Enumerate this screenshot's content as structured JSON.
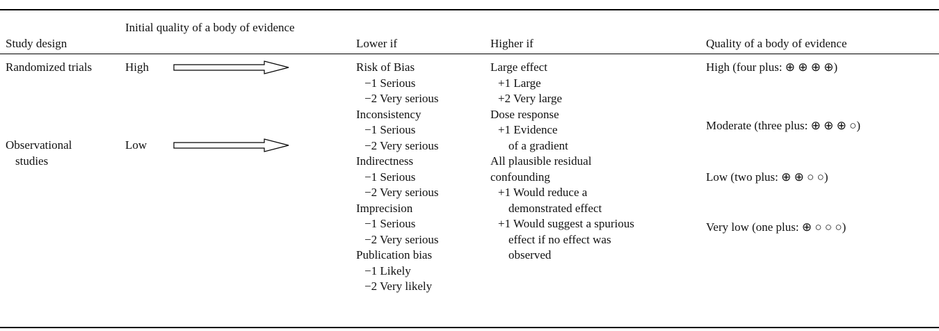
{
  "header": [
    "Study design",
    "Initial quality of a body of evidence",
    "Lower if",
    "Higher if",
    "Quality of a body of evidence"
  ],
  "designs": [
    {
      "design": "Randomized trials",
      "initial": "High"
    },
    {
      "design": "Observational studies",
      "initial": "Low"
    }
  ],
  "lower_if": [
    {
      "factor": "Risk of Bias",
      "levels": [
        "−1 Serious",
        "−2 Very serious"
      ]
    },
    {
      "factor": "Inconsistency",
      "levels": [
        "−1 Serious",
        "−2 Very serious"
      ]
    },
    {
      "factor": "Indirectness",
      "levels": [
        "−1 Serious",
        "−2 Very serious"
      ]
    },
    {
      "factor": "Imprecision",
      "levels": [
        "−1 Serious",
        "−2 Very serious"
      ]
    },
    {
      "factor": "Publication bias",
      "levels": [
        "−1 Likely",
        "−2 Very likely"
      ]
    }
  ],
  "higher_if": [
    {
      "factor": [
        "Large effect"
      ],
      "levels": [
        [
          "+1 Large"
        ],
        [
          "+2 Very large"
        ]
      ]
    },
    {
      "factor": [
        "Dose response"
      ],
      "levels": [
        [
          "+1 Evidence",
          "of a gradient"
        ]
      ]
    },
    {
      "factor": [
        "All plausible residual",
        "confounding"
      ],
      "levels": [
        [
          "+1 Would reduce a",
          "demonstrated effect"
        ],
        [
          "+1 Would suggest a spurious",
          "effect if no effect was",
          "observed"
        ]
      ]
    }
  ],
  "quality": [
    "High (four plus: ⊕ ⊕ ⊕ ⊕)",
    "Moderate (three plus: ⊕ ⊕ ⊕ ○)",
    "Low (two plus: ⊕ ⊕ ○ ○)",
    "Very low (one plus: ⊕ ○ ○ ○)"
  ]
}
